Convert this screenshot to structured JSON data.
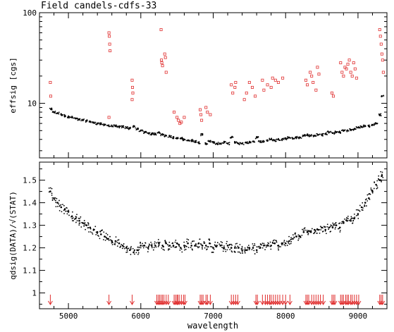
{
  "chart_data": [
    {
      "type": "scatter",
      "title": "Field candels-cdfs-33",
      "xlabel": "",
      "ylabel": "effsig [cgs]",
      "yscale": "log",
      "xlim": [
        4600,
        9400
      ],
      "ylim": [
        2.5,
        100
      ],
      "yticks": [
        {
          "value": 10,
          "label": "10"
        },
        {
          "value": 100,
          "label": "100"
        }
      ],
      "grid": false,
      "series": [
        {
          "color": "#000000",
          "marker": "dot",
          "x": [
            4760,
            4800,
            4850,
            4900,
            4950,
            5000,
            5050,
            5100,
            5150,
            5200,
            5250,
            5300,
            5350,
            5400,
            5450,
            5500,
            5550,
            5600,
            5650,
            5700,
            5750,
            5800,
            5850,
            5900,
            5950,
            6000,
            6050,
            6100,
            6150,
            6200,
            6250,
            6300,
            6350,
            6400,
            6450,
            6500,
            6550,
            6600,
            6650,
            6700,
            6750,
            6800,
            6850,
            6900,
            6950,
            7000,
            7050,
            7100,
            7150,
            7200,
            7250,
            7300,
            7350,
            7400,
            7450,
            7500,
            7550,
            7600,
            7650,
            7700,
            7750,
            7800,
            7850,
            7900,
            7950,
            8000,
            8050,
            8100,
            8150,
            8200,
            8250,
            8300,
            8350,
            8400,
            8450,
            8500,
            8550,
            8600,
            8650,
            8700,
            8750,
            8800,
            8850,
            8900,
            8950,
            9000,
            9050,
            9100,
            9150,
            9200,
            9250,
            9300,
            9330
          ],
          "y": [
            8.6,
            8.0,
            7.8,
            7.5,
            7.3,
            7.1,
            7.0,
            6.8,
            6.6,
            6.5,
            6.4,
            6.3,
            6.1,
            6.0,
            5.9,
            5.8,
            5.7,
            5.6,
            5.6,
            5.5,
            5.5,
            5.4,
            5.3,
            5.6,
            5.2,
            5.0,
            4.8,
            4.7,
            4.6,
            4.6,
            4.8,
            4.5,
            4.4,
            4.3,
            4.2,
            4.1,
            4.1,
            4.0,
            3.9,
            3.9,
            3.8,
            3.7,
            4.5,
            3.6,
            3.8,
            3.7,
            3.6,
            3.6,
            3.7,
            3.6,
            4.2,
            3.7,
            3.6,
            3.6,
            3.7,
            3.7,
            3.8,
            4.2,
            3.8,
            3.8,
            3.9,
            4.0,
            3.9,
            4.0,
            4.0,
            4.1,
            4.2,
            4.1,
            4.2,
            4.2,
            4.4,
            4.5,
            4.4,
            4.4,
            4.5,
            4.5,
            4.6,
            4.8,
            4.7,
            4.8,
            4.8,
            5.0,
            5.0,
            5.1,
            5.2,
            5.4,
            5.5,
            5.6,
            5.6,
            5.8,
            6.0,
            7.5,
            12.0
          ]
        },
        {
          "color": "#e03030",
          "marker": "open-square",
          "x": [
            4750,
            4755,
            5560,
            5565,
            5570,
            5575,
            5560,
            5880,
            5885,
            5890,
            5880,
            6280,
            6285,
            6290,
            6300,
            6330,
            6340,
            6350,
            6460,
            6500,
            6520,
            6540,
            6560,
            6600,
            6820,
            6830,
            6840,
            6900,
            6920,
            6960,
            7250,
            7270,
            7300,
            7310,
            7430,
            7460,
            7500,
            7540,
            7580,
            7680,
            7700,
            7750,
            7800,
            7820,
            7860,
            7900,
            7960,
            8280,
            8300,
            8340,
            8360,
            8380,
            8420,
            8440,
            8460,
            8640,
            8660,
            8760,
            8780,
            8800,
            8820,
            8840,
            8860,
            8880,
            8900,
            8920,
            8940,
            8960,
            8980,
            9300,
            9310,
            9320,
            9330,
            9340,
            9350
          ],
          "y": [
            17,
            12,
            60,
            55,
            45,
            38,
            7,
            18,
            15,
            13,
            11,
            65,
            30,
            28,
            26,
            35,
            32,
            22,
            8,
            7,
            6.5,
            6,
            6.2,
            7,
            8.5,
            7.5,
            6.5,
            9,
            8,
            7.5,
            16,
            13,
            15,
            17,
            11,
            13,
            17,
            15,
            12,
            18,
            14,
            16,
            15,
            19,
            18,
            17,
            19,
            18,
            16,
            22,
            20,
            17,
            14,
            25,
            21,
            13,
            12,
            28,
            22,
            20,
            25,
            24,
            27,
            30,
            22,
            20,
            28,
            24,
            19,
            65,
            55,
            45,
            35,
            30,
            22
          ]
        }
      ]
    },
    {
      "type": "scatter",
      "title": "",
      "xlabel": "wavelength",
      "ylabel": "qdsig(DATA)/√(STAT)",
      "xlim": [
        4600,
        9400
      ],
      "ylim": [
        0.93,
        1.58
      ],
      "xticks": [
        5000,
        6000,
        7000,
        8000,
        9000
      ],
      "yticks": [
        1.0,
        1.1,
        1.2,
        1.3,
        1.4,
        1.5
      ],
      "ytick_labels": [
        "1",
        "1.1",
        "1.2",
        "1.3",
        "1.4",
        "1.5"
      ],
      "grid": false,
      "series": [
        {
          "color": "#000000",
          "marker": "dot",
          "x": [
            4750,
            4800,
            4850,
            4900,
            4950,
            5000,
            5050,
            5100,
            5150,
            5200,
            5250,
            5300,
            5350,
            5400,
            5450,
            5500,
            5550,
            5600,
            5650,
            5700,
            5750,
            5800,
            5850,
            5900,
            5950,
            6000,
            6050,
            6100,
            6150,
            6200,
            6250,
            6300,
            6350,
            6400,
            6450,
            6500,
            6550,
            6600,
            6650,
            6700,
            6750,
            6800,
            6850,
            6900,
            6950,
            7000,
            7050,
            7100,
            7150,
            7200,
            7250,
            7300,
            7350,
            7400,
            7450,
            7500,
            7550,
            7600,
            7650,
            7700,
            7750,
            7800,
            7850,
            7900,
            7950,
            8000,
            8050,
            8100,
            8150,
            8200,
            8250,
            8300,
            8350,
            8400,
            8450,
            8500,
            8550,
            8600,
            8650,
            8700,
            8750,
            8800,
            8850,
            8900,
            8950,
            9000,
            9050,
            9100,
            9150,
            9200,
            9250,
            9300,
            9330
          ],
          "y": [
            1.45,
            1.42,
            1.4,
            1.38,
            1.37,
            1.36,
            1.34,
            1.33,
            1.32,
            1.31,
            1.3,
            1.29,
            1.28,
            1.27,
            1.26,
            1.25,
            1.24,
            1.23,
            1.23,
            1.22,
            1.21,
            1.2,
            1.19,
            1.18,
            1.19,
            1.21,
            1.21,
            1.2,
            1.21,
            1.21,
            1.22,
            1.21,
            1.22,
            1.21,
            1.21,
            1.22,
            1.2,
            1.21,
            1.22,
            1.21,
            1.21,
            1.22,
            1.21,
            1.21,
            1.22,
            1.2,
            1.21,
            1.21,
            1.2,
            1.21,
            1.2,
            1.2,
            1.2,
            1.19,
            1.19,
            1.2,
            1.2,
            1.19,
            1.2,
            1.21,
            1.21,
            1.21,
            1.22,
            1.21,
            1.22,
            1.22,
            1.23,
            1.24,
            1.25,
            1.25,
            1.27,
            1.27,
            1.27,
            1.28,
            1.28,
            1.29,
            1.28,
            1.29,
            1.29,
            1.3,
            1.29,
            1.31,
            1.32,
            1.32,
            1.33,
            1.35,
            1.38,
            1.4,
            1.42,
            1.45,
            1.48,
            1.5,
            1.52
          ]
        }
      ],
      "markers": {
        "type": "down-arrow",
        "color": "#e03030",
        "x": [
          4750,
          5560,
          5880,
          6220,
          6240,
          6260,
          6280,
          6300,
          6320,
          6350,
          6380,
          6460,
          6480,
          6500,
          6510,
          6530,
          6560,
          6590,
          6610,
          6820,
          6840,
          6860,
          6900,
          6920,
          6960,
          7250,
          7280,
          7310,
          7340,
          7590,
          7610,
          7680,
          7720,
          7750,
          7780,
          7800,
          7830,
          7860,
          7890,
          7920,
          7960,
          8000,
          8060,
          8280,
          8300,
          8320,
          8360,
          8390,
          8420,
          8450,
          8480,
          8520,
          8640,
          8660,
          8680,
          8760,
          8780,
          8800,
          8830,
          8850,
          8870,
          8900,
          8920,
          8950,
          8980,
          9010,
          9300,
          9320,
          9340
        ]
      }
    }
  ]
}
